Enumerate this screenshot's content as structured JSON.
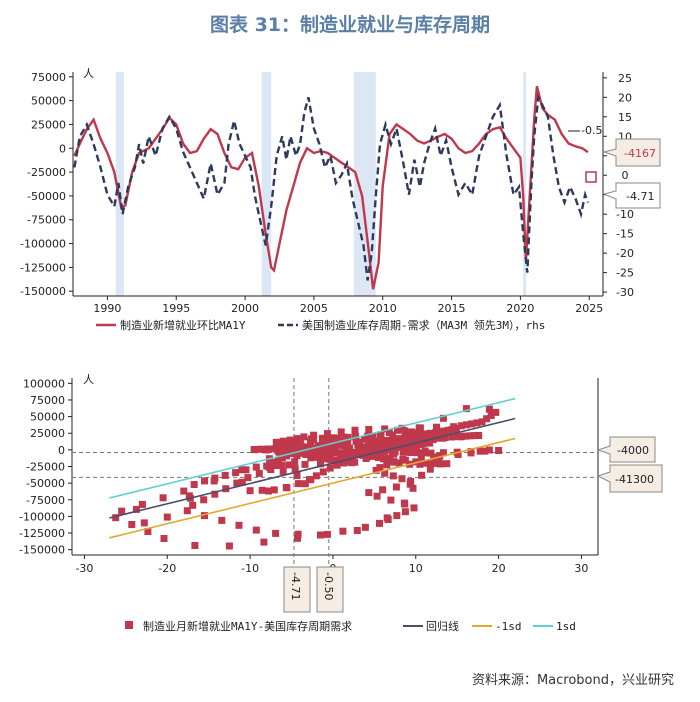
{
  "title": "图表 31：制造业就业与库存周期",
  "source": "资料来源：Macrobond，兴业研究",
  "colors": {
    "employment": "#c0384b",
    "inventory": "#2e3a5c",
    "recession": "#dce7f5",
    "scatter": "#c0384b",
    "regression": "#4a4f6a",
    "minus_sd": "#e0a830",
    "plus_sd": "#5fd0d0",
    "callout_fill": "#f5ece4",
    "callout_border": "#8a8a8a",
    "title": "#5b7fa6"
  },
  "chart_data": [
    {
      "type": "line",
      "unit_left": "人",
      "y_left_ticks": [
        "75000",
        "50000",
        "25000",
        "0",
        "-25000",
        "-50000",
        "-75000",
        "-100000",
        "-125000",
        "-150000"
      ],
      "y_left_lim": [
        -155000,
        80000
      ],
      "y_right_ticks": [
        "25",
        "20",
        "15",
        "10",
        "5",
        "0",
        "-5",
        "-10",
        "-15",
        "-20",
        "-25",
        "-30"
      ],
      "y_right_lim": [
        -31,
        26.5
      ],
      "x_ticks": [
        "1990",
        "1995",
        "2000",
        "2005",
        "2010",
        "2015",
        "2020",
        "2025"
      ],
      "x_lim": [
        1987.5,
        2026
      ],
      "recessions": [
        [
          1990.6,
          1991.2
        ],
        [
          2001.2,
          2001.9
        ],
        [
          2007.9,
          2009.5
        ],
        [
          2020.2,
          2020.4
        ]
      ],
      "legend": {
        "employment": "制造业新增就业环比MA1Y",
        "inventory": "美国制造业库存周期-需求（MA3M 领先3M），rhs"
      },
      "annotations": {
        "right_value": "-0.5",
        "callout_left": "-4167",
        "callout_right": "-4.71"
      },
      "series_employment": [
        [
          1987.6,
          -8000
        ],
        [
          1988.0,
          5000
        ],
        [
          1988.5,
          20000
        ],
        [
          1989.0,
          30000
        ],
        [
          1989.5,
          10000
        ],
        [
          1990.0,
          -5000
        ],
        [
          1990.5,
          -25000
        ],
        [
          1991.0,
          -62000
        ],
        [
          1991.3,
          -60000
        ],
        [
          1991.8,
          -25000
        ],
        [
          1992.3,
          -5000
        ],
        [
          1993.0,
          0
        ],
        [
          1993.5,
          10000
        ],
        [
          1994.0,
          20000
        ],
        [
          1994.5,
          32000
        ],
        [
          1995.0,
          25000
        ],
        [
          1995.5,
          5000
        ],
        [
          1996.0,
          -5000
        ],
        [
          1996.5,
          -3000
        ],
        [
          1997.0,
          10000
        ],
        [
          1997.5,
          20000
        ],
        [
          1998.0,
          15000
        ],
        [
          1998.5,
          -5000
        ],
        [
          1999.0,
          -20000
        ],
        [
          1999.5,
          -22000
        ],
        [
          2000.0,
          -10000
        ],
        [
          2000.5,
          -5000
        ],
        [
          2001.0,
          -40000
        ],
        [
          2001.5,
          -90000
        ],
        [
          2001.9,
          -125000
        ],
        [
          2002.1,
          -128000
        ],
        [
          2002.5,
          -100000
        ],
        [
          2003.0,
          -65000
        ],
        [
          2003.5,
          -40000
        ],
        [
          2004.0,
          -15000
        ],
        [
          2004.5,
          0
        ],
        [
          2005.0,
          -5000
        ],
        [
          2005.5,
          -3000
        ],
        [
          2006.0,
          -5000
        ],
        [
          2006.5,
          -10000
        ],
        [
          2007.0,
          -15000
        ],
        [
          2007.5,
          -20000
        ],
        [
          2008.0,
          -25000
        ],
        [
          2008.5,
          -50000
        ],
        [
          2009.0,
          -110000
        ],
        [
          2009.3,
          -148000
        ],
        [
          2009.7,
          -120000
        ],
        [
          2010.0,
          -40000
        ],
        [
          2010.5,
          15000
        ],
        [
          2011.0,
          25000
        ],
        [
          2011.5,
          20000
        ],
        [
          2012.0,
          15000
        ],
        [
          2012.5,
          8000
        ],
        [
          2013.0,
          5000
        ],
        [
          2013.5,
          8000
        ],
        [
          2014.0,
          12000
        ],
        [
          2014.5,
          15000
        ],
        [
          2015.0,
          10000
        ],
        [
          2015.5,
          0
        ],
        [
          2016.0,
          -5000
        ],
        [
          2016.5,
          -3000
        ],
        [
          2017.0,
          5000
        ],
        [
          2017.5,
          15000
        ],
        [
          2018.0,
          20000
        ],
        [
          2018.5,
          22000
        ],
        [
          2019.0,
          10000
        ],
        [
          2019.5,
          0
        ],
        [
          2020.0,
          -10000
        ],
        [
          2020.2,
          -50000
        ],
        [
          2020.4,
          -118000
        ],
        [
          2020.8,
          -20000
        ],
        [
          2021.0,
          30000
        ],
        [
          2021.2,
          65000
        ],
        [
          2021.6,
          42000
        ],
        [
          2022.0,
          35000
        ],
        [
          2022.5,
          30000
        ],
        [
          2023.0,
          15000
        ],
        [
          2023.5,
          5000
        ],
        [
          2024.0,
          2000
        ],
        [
          2024.5,
          0
        ],
        [
          2024.9,
          -4167
        ]
      ],
      "series_inventory": [
        [
          1987.6,
          2
        ],
        [
          1988.0,
          10
        ],
        [
          1988.5,
          13
        ],
        [
          1989.0,
          8
        ],
        [
          1989.5,
          2
        ],
        [
          1990.0,
          -5
        ],
        [
          1990.5,
          -8
        ],
        [
          1990.8,
          -2
        ],
        [
          1991.1,
          -10
        ],
        [
          1991.5,
          -3
        ],
        [
          1992.0,
          2
        ],
        [
          1992.3,
          8
        ],
        [
          1992.6,
          3
        ],
        [
          1993.0,
          10
        ],
        [
          1993.5,
          5
        ],
        [
          1994.0,
          12
        ],
        [
          1994.5,
          15
        ],
        [
          1995.0,
          12
        ],
        [
          1995.5,
          6
        ],
        [
          1996.0,
          2
        ],
        [
          1996.5,
          -2
        ],
        [
          1997.0,
          -6
        ],
        [
          1997.5,
          3
        ],
        [
          1998.0,
          -5
        ],
        [
          1998.5,
          -2
        ],
        [
          1998.8,
          8
        ],
        [
          1999.2,
          14
        ],
        [
          1999.6,
          8
        ],
        [
          2000.0,
          5
        ],
        [
          2000.4,
          2
        ],
        [
          2000.7,
          -5
        ],
        [
          2001.0,
          -10
        ],
        [
          2001.5,
          -18
        ],
        [
          2001.9,
          -8
        ],
        [
          2002.3,
          5
        ],
        [
          2002.7,
          10
        ],
        [
          2003.0,
          4
        ],
        [
          2003.3,
          10
        ],
        [
          2003.7,
          5
        ],
        [
          2004.0,
          8
        ],
        [
          2004.3,
          16
        ],
        [
          2004.6,
          20
        ],
        [
          2005.0,
          12
        ],
        [
          2005.4,
          8
        ],
        [
          2005.8,
          2
        ],
        [
          2006.2,
          5
        ],
        [
          2006.6,
          -2
        ],
        [
          2007.0,
          0
        ],
        [
          2007.4,
          3
        ],
        [
          2007.8,
          -6
        ],
        [
          2008.2,
          -12
        ],
        [
          2008.6,
          -18
        ],
        [
          2008.9,
          -27
        ],
        [
          2009.2,
          -20
        ],
        [
          2009.5,
          -5
        ],
        [
          2009.8,
          8
        ],
        [
          2010.2,
          13
        ],
        [
          2010.6,
          8
        ],
        [
          2011.0,
          12
        ],
        [
          2011.5,
          3
        ],
        [
          2011.9,
          -5
        ],
        [
          2012.3,
          4
        ],
        [
          2012.7,
          -3
        ],
        [
          2013.0,
          3
        ],
        [
          2013.4,
          8
        ],
        [
          2013.8,
          12
        ],
        [
          2014.2,
          5
        ],
        [
          2014.6,
          9
        ],
        [
          2015.0,
          2
        ],
        [
          2015.5,
          -5
        ],
        [
          2016.0,
          -2
        ],
        [
          2016.5,
          -5
        ],
        [
          2017.0,
          5
        ],
        [
          2017.5,
          10
        ],
        [
          2018.0,
          15
        ],
        [
          2018.5,
          18
        ],
        [
          2019.0,
          5
        ],
        [
          2019.5,
          -5
        ],
        [
          2019.9,
          -3
        ],
        [
          2020.2,
          -15
        ],
        [
          2020.5,
          -25
        ],
        [
          2020.8,
          -2
        ],
        [
          2021.0,
          10
        ],
        [
          2021.3,
          20
        ],
        [
          2021.6,
          18
        ],
        [
          2022.0,
          15
        ],
        [
          2022.4,
          5
        ],
        [
          2022.8,
          -3
        ],
        [
          2023.2,
          -7
        ],
        [
          2023.6,
          -3
        ],
        [
          2024.0,
          -6
        ],
        [
          2024.4,
          -10
        ],
        [
          2024.7,
          -5
        ],
        [
          2024.9,
          -7
        ]
      ]
    },
    {
      "type": "scatter",
      "unit_left": "人",
      "y_ticks": [
        "100000",
        "75000",
        "50000",
        "25000",
        "0",
        "-25000",
        "-50000",
        "-75000",
        "-100000",
        "-125000",
        "-150000"
      ],
      "y_lim": [
        -158000,
        108000
      ],
      "x_ticks": [
        "-30",
        "-20",
        "-10",
        "0",
        "10",
        "20",
        "30"
      ],
      "x_lim": [
        -31.5,
        32
      ],
      "hlines": [
        -4000,
        -41300
      ],
      "vlines": [
        -4.71,
        -0.5
      ],
      "callouts": {
        "h1": "-4000",
        "h2": "-41300",
        "v1": "-4.71",
        "v2": "-0.50"
      },
      "regression": {
        "slope": 3050,
        "intercept": -20000,
        "x_range": [
          -27,
          22
        ]
      },
      "sd_band": 30000,
      "legend": {
        "scatter": "制造业月新增就业MA1Y-美国库存周期需求",
        "regression": "回归线",
        "minus_sd": "-1sd",
        "plus_sd": "1sd"
      }
    }
  ]
}
